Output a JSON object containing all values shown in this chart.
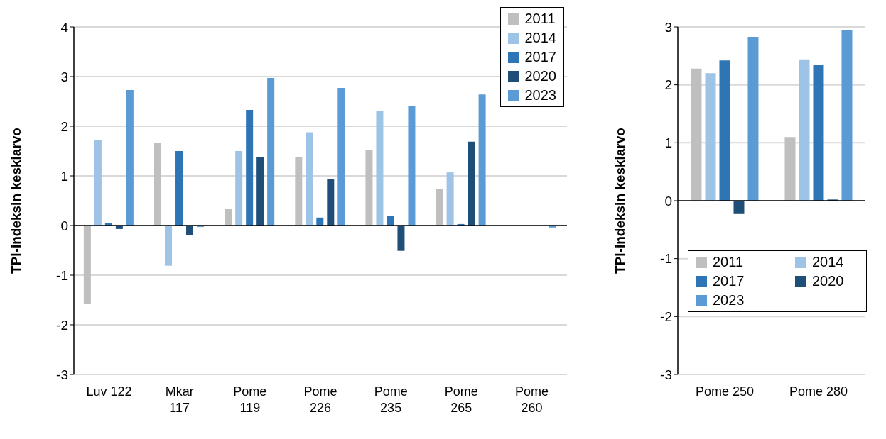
{
  "chart_data": [
    {
      "type": "bar",
      "ylabel": "TPI-indeksin keskiarvo",
      "categories": [
        "Luv 122",
        "Mkar 117",
        "Pome 119",
        "Pome 226",
        "Pome 235",
        "Pome 265",
        "Pome 260"
      ],
      "series": [
        {
          "name": "2011",
          "color": "#bfbfbf",
          "values": [
            -1.57,
            1.66,
            0.34,
            1.38,
            1.53,
            0.74,
            null
          ]
        },
        {
          "name": "2014",
          "color": "#9dc3e6",
          "values": [
            1.72,
            -0.81,
            1.5,
            1.88,
            2.3,
            1.07,
            null
          ]
        },
        {
          "name": "2017",
          "color": "#2e75b6",
          "values": [
            0.05,
            1.5,
            2.33,
            0.16,
            0.2,
            0.03,
            null
          ]
        },
        {
          "name": "2020",
          "color": "#1f4e79",
          "values": [
            -0.07,
            -0.2,
            1.37,
            0.93,
            -0.51,
            1.69,
            null
          ]
        },
        {
          "name": "2023",
          "color": "#5b9bd5",
          "values": [
            2.73,
            -0.03,
            2.97,
            2.77,
            2.4,
            2.64,
            -0.04
          ]
        }
      ],
      "ylim": [
        -3,
        4
      ],
      "yticks": [
        -3,
        -2,
        -1,
        0,
        1,
        2,
        3,
        4
      ],
      "grid": "y",
      "legend": "top right"
    },
    {
      "type": "bar",
      "ylabel": "TPI-indeksin keskiarvo",
      "categories": [
        "Pome 250",
        "Pome 280"
      ],
      "series": [
        {
          "name": "2011",
          "color": "#bfbfbf",
          "values": [
            2.28,
            1.1
          ]
        },
        {
          "name": "2014",
          "color": "#9dc3e6",
          "values": [
            2.2,
            2.44
          ]
        },
        {
          "name": "2017",
          "color": "#2e75b6",
          "values": [
            2.42,
            2.35
          ]
        },
        {
          "name": "2020",
          "color": "#1f4e79",
          "values": [
            -0.23,
            0.02
          ]
        },
        {
          "name": "2023",
          "color": "#5b9bd5",
          "values": [
            2.83,
            2.95
          ]
        }
      ],
      "ylim": [
        -3,
        3
      ],
      "yticks": [
        -3,
        -2,
        -1,
        0,
        1,
        2,
        3
      ],
      "grid": "y",
      "legend": "bottom"
    }
  ]
}
